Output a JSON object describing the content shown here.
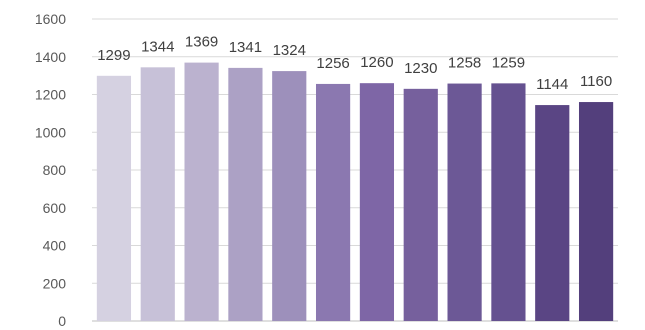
{
  "chart_data": {
    "type": "bar",
    "title": "",
    "xlabel": "",
    "ylabel": "",
    "categories": [
      "",
      "",
      "",
      "",
      "",
      "",
      "",
      "",
      "",
      "",
      "",
      ""
    ],
    "values": [
      1299,
      1344,
      1369,
      1341,
      1324,
      1256,
      1260,
      1230,
      1258,
      1259,
      1144,
      1160
    ],
    "ylim": [
      0,
      1600
    ],
    "yticks": [
      0,
      200,
      400,
      600,
      800,
      1000,
      1200,
      1400,
      1600
    ],
    "grid": true,
    "legend": "none",
    "bar_colors": [
      "#d5d1e1",
      "#c7c1d8",
      "#bbb2cf",
      "#aca1c5",
      "#9d90bb",
      "#8b78b0",
      "#7e66a6",
      "#76609d",
      "#6c5896",
      "#655190",
      "#5a4584",
      "#533f7c"
    ],
    "grid_color": "#d9d9d9"
  }
}
